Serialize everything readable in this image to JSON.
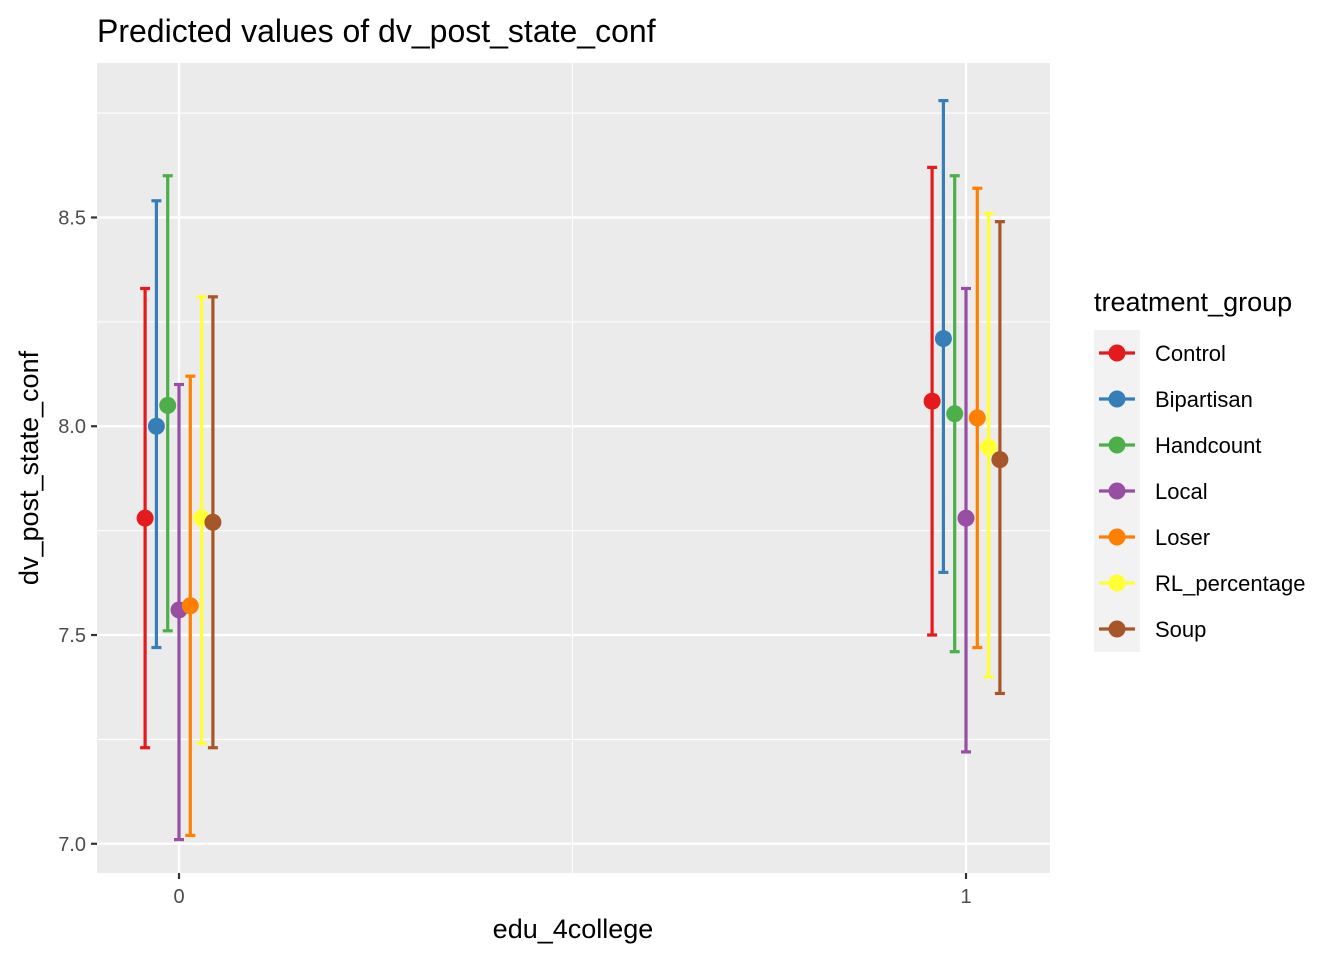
{
  "chart_data": {
    "type": "scatter",
    "title": "Predicted values of dv_post_state_conf",
    "xlabel": "edu_4college",
    "ylabel": "dv_post_state_conf",
    "categories": [
      "0",
      "1"
    ],
    "ylim": [
      6.93,
      8.87
    ],
    "yticks": [
      "7.0",
      "7.5",
      "8.0",
      "8.5"
    ],
    "grid": true,
    "legend": {
      "title": "treatment_group",
      "position": "right"
    },
    "series": [
      {
        "name": "Control",
        "color": "#E41A1C",
        "values": [
          7.78,
          8.06
        ],
        "lower": [
          7.23,
          7.5
        ],
        "upper": [
          8.33,
          8.62
        ]
      },
      {
        "name": "Bipartisan",
        "color": "#377EB8",
        "values": [
          8.0,
          8.21
        ],
        "lower": [
          7.47,
          7.65
        ],
        "upper": [
          8.54,
          8.78
        ]
      },
      {
        "name": "Handcount",
        "color": "#4DAF4A",
        "values": [
          8.05,
          8.03
        ],
        "lower": [
          7.51,
          7.46
        ],
        "upper": [
          8.6,
          8.6
        ]
      },
      {
        "name": "Local",
        "color": "#984EA3",
        "values": [
          7.56,
          7.78
        ],
        "lower": [
          7.01,
          7.22
        ],
        "upper": [
          8.1,
          8.33
        ]
      },
      {
        "name": "Loser",
        "color": "#FF7F00",
        "values": [
          7.57,
          8.02
        ],
        "lower": [
          7.02,
          7.47
        ],
        "upper": [
          8.12,
          8.57
        ]
      },
      {
        "name": "RL_percentage",
        "color": "#FFFF33",
        "values": [
          7.78,
          7.95
        ],
        "lower": [
          7.24,
          7.4
        ],
        "upper": [
          8.31,
          8.51
        ]
      },
      {
        "name": "Soup",
        "color": "#A65628",
        "values": [
          7.77,
          7.92
        ],
        "lower": [
          7.23,
          7.36
        ],
        "upper": [
          8.31,
          8.49
        ]
      }
    ]
  }
}
